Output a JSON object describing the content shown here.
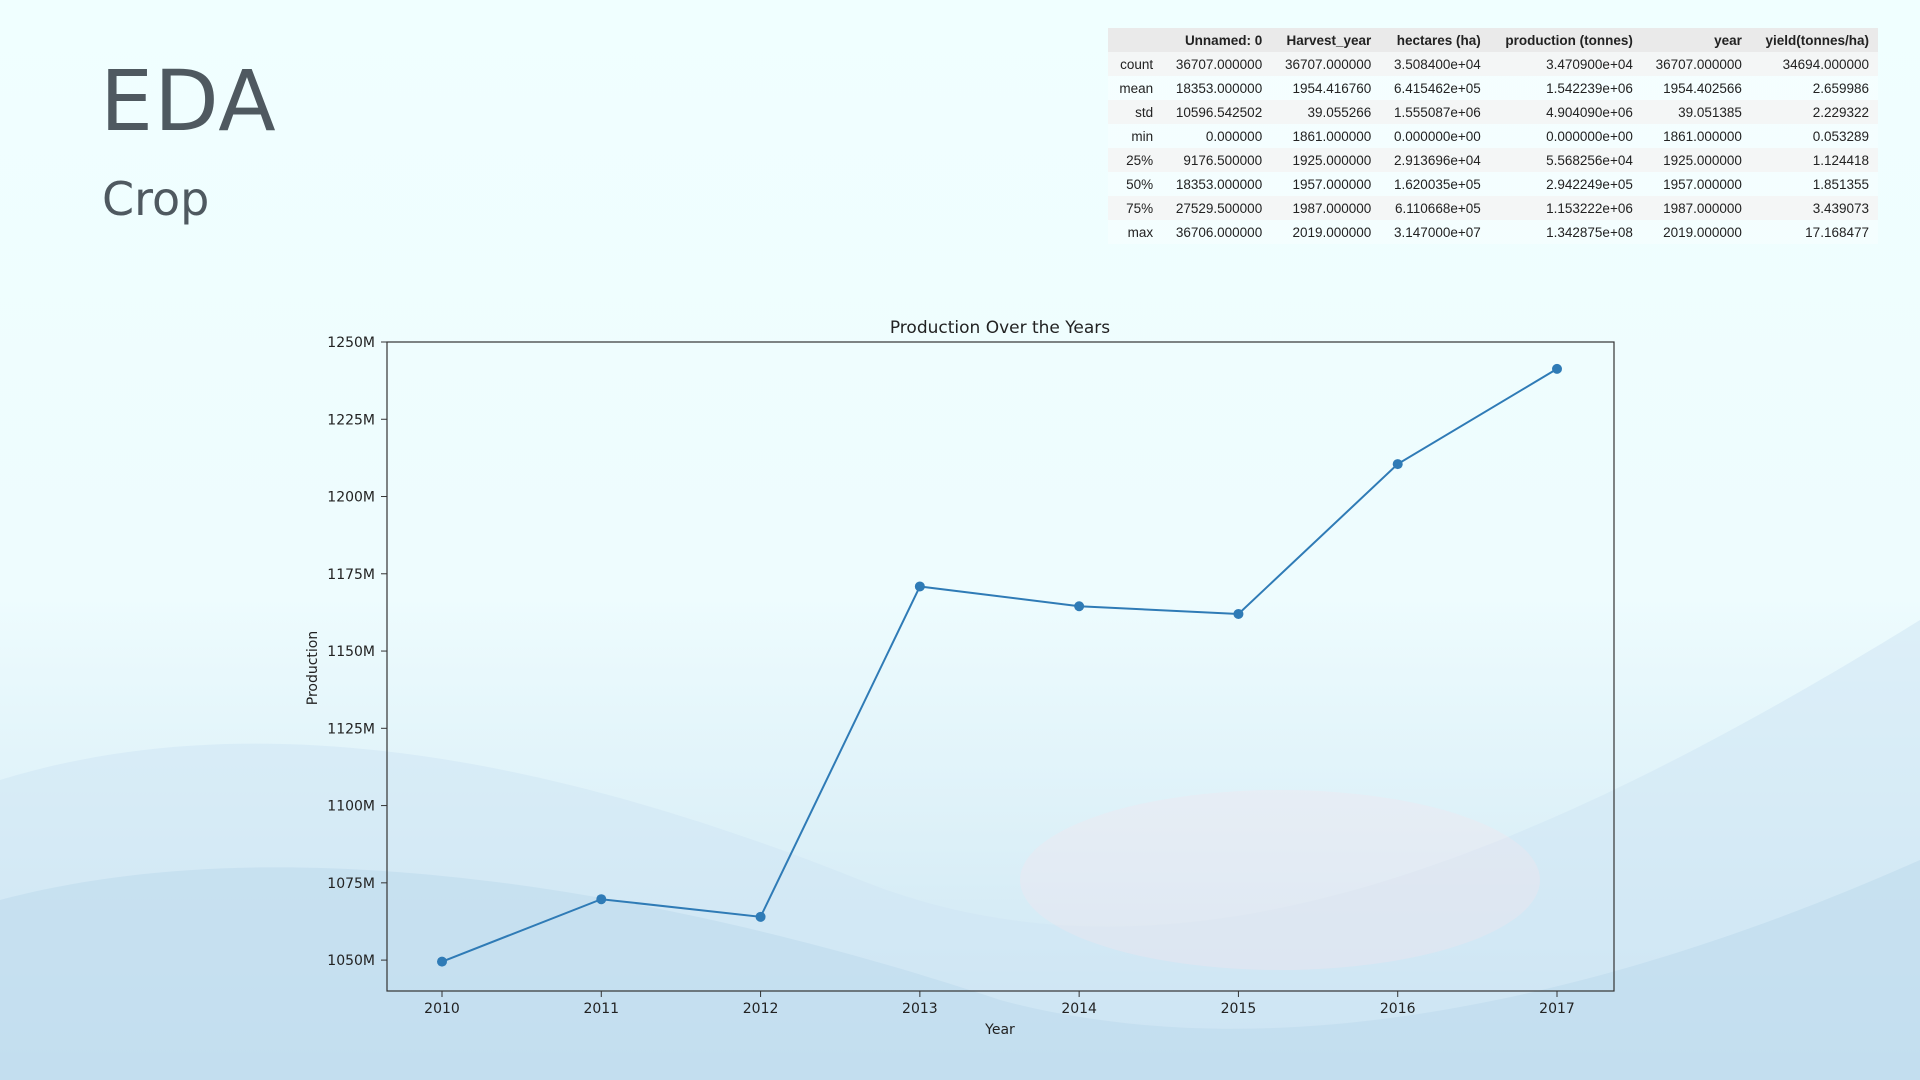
{
  "slide": {
    "title": "EDA",
    "subtitle": "Crop"
  },
  "colors": {
    "line": "#2f7bb6",
    "text": "#4f5960"
  },
  "stats_table": {
    "columns": [
      "",
      "Unnamed: 0",
      "Harvest_year",
      "hectares (ha)",
      "production (tonnes)",
      "year",
      "yield(tonnes/ha)"
    ],
    "rows": [
      [
        "count",
        "36707.000000",
        "36707.000000",
        "3.508400e+04",
        "3.470900e+04",
        "36707.000000",
        "34694.000000"
      ],
      [
        "mean",
        "18353.000000",
        "1954.416760",
        "6.415462e+05",
        "1.542239e+06",
        "1954.402566",
        "2.659986"
      ],
      [
        "std",
        "10596.542502",
        "39.055266",
        "1.555087e+06",
        "4.904090e+06",
        "39.051385",
        "2.229322"
      ],
      [
        "min",
        "0.000000",
        "1861.000000",
        "0.000000e+00",
        "0.000000e+00",
        "1861.000000",
        "0.053289"
      ],
      [
        "25%",
        "9176.500000",
        "1925.000000",
        "2.913696e+04",
        "5.568256e+04",
        "1925.000000",
        "1.124418"
      ],
      [
        "50%",
        "18353.000000",
        "1957.000000",
        "1.620035e+05",
        "2.942249e+05",
        "1957.000000",
        "1.851355"
      ],
      [
        "75%",
        "27529.500000",
        "1987.000000",
        "6.110668e+05",
        "1.153222e+06",
        "1987.000000",
        "3.439073"
      ],
      [
        "max",
        "36706.000000",
        "2019.000000",
        "3.147000e+07",
        "1.342875e+08",
        "2019.000000",
        "17.168477"
      ]
    ]
  },
  "chart_data": {
    "type": "line",
    "title": "Production Over the Years",
    "xlabel": "Year",
    "ylabel": "Production",
    "x": [
      2010,
      2011,
      2012,
      2013,
      2014,
      2015,
      2016,
      2017
    ],
    "x_tick_labels": [
      "2010",
      "2011",
      "2012",
      "2013",
      "2014",
      "2015",
      "2016",
      "2017"
    ],
    "series": [
      {
        "values": [
          1049.5,
          1069.7,
          1064.0,
          1170.9,
          1164.5,
          1162.0,
          1210.5,
          1241.3
        ],
        "unit": "M"
      }
    ],
    "ylim": [
      1040,
      1250
    ],
    "y_ticks": [
      1050,
      1075,
      1100,
      1125,
      1150,
      1175,
      1200,
      1225,
      1250
    ],
    "y_tick_labels": [
      "1050M",
      "1075M",
      "1100M",
      "1125M",
      "1150M",
      "1175M",
      "1200M",
      "1225M",
      "1250M"
    ],
    "marker": "circle",
    "grid": false,
    "legend": false
  }
}
